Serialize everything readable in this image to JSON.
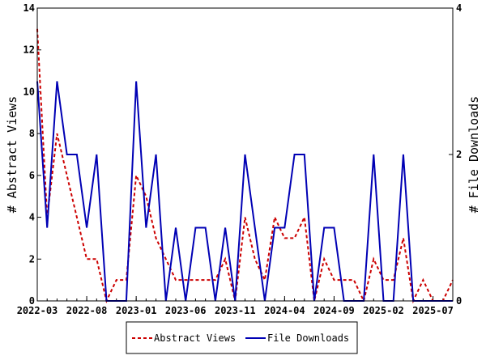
{
  "chart_data": {
    "type": "line",
    "x_ticks": [
      "2022-03",
      "2022-08",
      "2023-01",
      "2023-06",
      "2023-11",
      "2024-04",
      "2024-09",
      "2025-02",
      "2025-07"
    ],
    "x_count": 43,
    "x_tick_every": 5,
    "y_left": {
      "label": "# Abstract Views",
      "ylim": [
        0,
        14
      ],
      "ticks": [
        0,
        2,
        4,
        6,
        8,
        10,
        12,
        14
      ]
    },
    "y_right": {
      "label": "# File Downloads",
      "ylim": [
        0,
        4
      ],
      "ticks": [
        0,
        2,
        4
      ]
    },
    "series": [
      {
        "name": "Abstract Views",
        "axis": "left",
        "color": "#cc0000",
        "dash": "dashed",
        "values": [
          13,
          4,
          8,
          6,
          4,
          2,
          2,
          0,
          1,
          1,
          6,
          5,
          3,
          2,
          1,
          1,
          1,
          1,
          1,
          2,
          0,
          4,
          2,
          1,
          4,
          3,
          3,
          4,
          0,
          2,
          1,
          1,
          1,
          0,
          2,
          1,
          1,
          3,
          0,
          1,
          0,
          0,
          1
        ]
      },
      {
        "name": "File Downloads",
        "axis": "right",
        "color": "#0000b4",
        "dash": "solid",
        "values": [
          3,
          1,
          3,
          2,
          2,
          1,
          2,
          0,
          0,
          0,
          3,
          1,
          2,
          0,
          1,
          0,
          1,
          1,
          0,
          1,
          0,
          2,
          1,
          0,
          1,
          1,
          2,
          2,
          0,
          1,
          1,
          0,
          0,
          0,
          2,
          0,
          0,
          2,
          0,
          0,
          0,
          0,
          0
        ]
      }
    ],
    "grid": false,
    "legend_position": "bottom-center"
  }
}
